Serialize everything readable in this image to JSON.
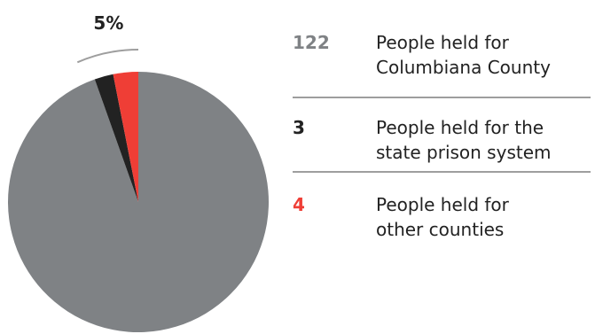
{
  "chart_data": {
    "type": "pie",
    "slices": [
      {
        "label": "People held for Columbiana County",
        "value": 122,
        "color": "#7f8285"
      },
      {
        "label": "People held for the state prison system",
        "value": 3,
        "color": "#222222"
      },
      {
        "label": "People held for other counties",
        "value": 4,
        "color": "#ef3e36"
      }
    ],
    "callout": {
      "text": "5%"
    },
    "legend": [
      {
        "count": "122",
        "label_line1": "People held for",
        "label_line2": "Columbiana County",
        "color": "#7f8285"
      },
      {
        "count": "3",
        "label_line1": "People held for the",
        "label_line2": "state prison system",
        "color": "#222222"
      },
      {
        "count": "4",
        "label_line1": "People held for",
        "label_line2": "other counties",
        "color": "#ef3e36"
      }
    ]
  }
}
